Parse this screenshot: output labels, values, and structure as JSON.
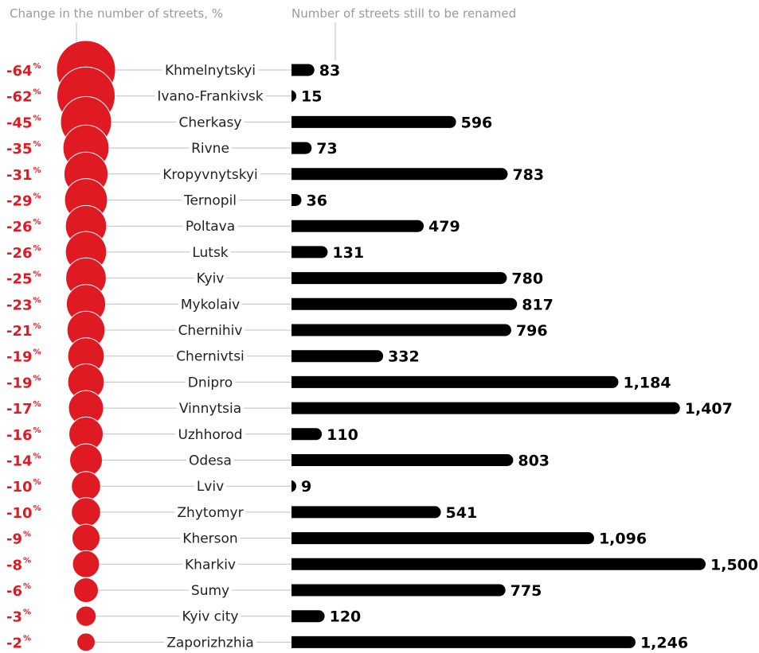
{
  "headers": {
    "left": "Change in the number of streets, %",
    "right": "Number of streets still to be renamed"
  },
  "colors": {
    "circle": "#e01a22",
    "bar": "#000000",
    "connector": "#bfbfbf"
  },
  "chart_data": {
    "type": "bar",
    "title": "",
    "percent_symbol": "%",
    "categories": [
      "Khmelnytskyi",
      "Ivano-Frankivsk",
      "Cherkasy",
      "Rivne",
      "Kropyvnytskyi",
      "Ternopil",
      "Poltava",
      "Lutsk",
      "Kyiv",
      "Mykolaiv",
      "Chernihiv",
      "Chernivtsi",
      "Dnipro",
      "Vinnytsia",
      "Uzhhorod",
      "Odesa",
      "Lviv",
      "Zhytomyr",
      "Kherson",
      "Kharkiv",
      "Sumy",
      "Kyiv city",
      "Zaporizhzhia"
    ],
    "series": [
      {
        "name": "Change in the number of streets, %",
        "values": [
          -64,
          -62,
          -45,
          -35,
          -31,
          -29,
          -26,
          -26,
          -25,
          -23,
          -21,
          -19,
          -19,
          -17,
          -16,
          -14,
          -10,
          -10,
          -9,
          -8,
          -6,
          -3,
          -2
        ]
      },
      {
        "name": "Number of streets still to be renamed",
        "values": [
          83,
          15,
          596,
          73,
          783,
          36,
          479,
          131,
          780,
          817,
          796,
          332,
          1184,
          1407,
          110,
          803,
          9,
          541,
          1096,
          1500,
          775,
          120,
          1246
        ]
      }
    ],
    "value_labels": [
      "83",
      "15",
      "596",
      "73",
      "783",
      "36",
      "479",
      "131",
      "780",
      "817",
      "796",
      "332",
      "1,184",
      "1,407",
      "110",
      "803",
      "9",
      "541",
      "1,096",
      "1,500",
      "775",
      "120",
      "1,246"
    ],
    "xlim": [
      0,
      1500
    ]
  }
}
